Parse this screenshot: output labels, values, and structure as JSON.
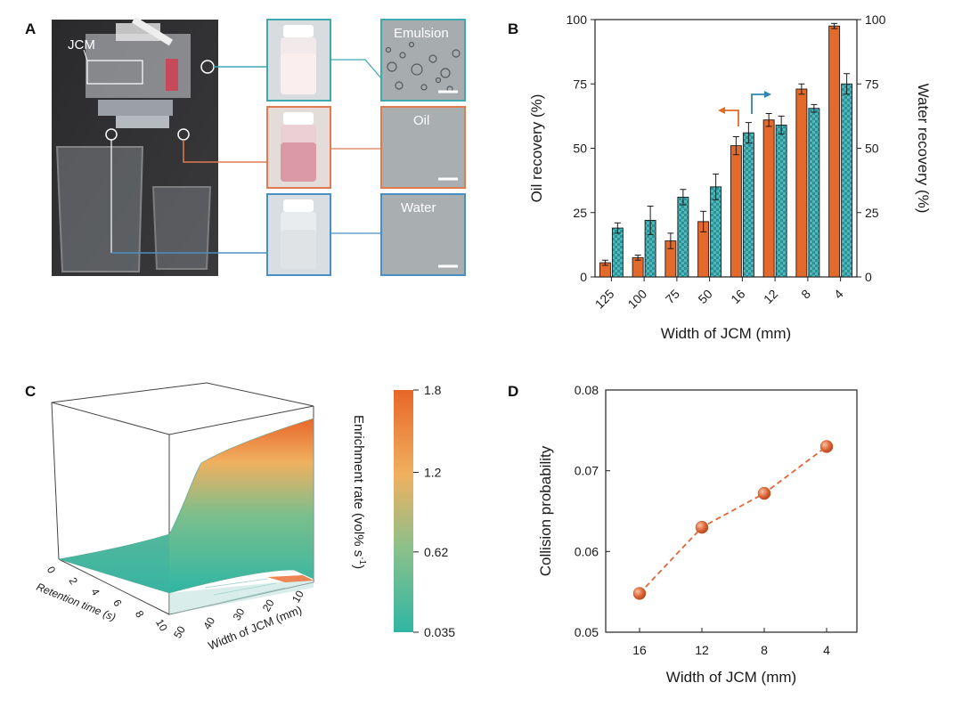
{
  "panels": {
    "a": "A",
    "b": "B",
    "c": "C",
    "d": "D"
  },
  "photo": {
    "jcm_label": "JCM",
    "thumb_labels": [
      "Emulsion",
      "Oil",
      "Water"
    ],
    "colors": {
      "emulsion_line": "#3fa9b0",
      "oil_line": "#e07b4f",
      "water_line": "#4a8fc4"
    }
  },
  "chart_data": [
    {
      "type": "bar",
      "id": "B",
      "categories": [
        "125",
        "100",
        "75",
        "50",
        "16",
        "12",
        "8",
        "4"
      ],
      "xlabel": "Width of JCM (mm)",
      "ylabel_left": "Oil recovery (%)",
      "ylabel_right": "Water recovery (%)",
      "ylim": [
        0,
        100
      ],
      "yticks": [
        0,
        25,
        50,
        75,
        100
      ],
      "series": [
        {
          "name": "Oil recovery",
          "axis": "left",
          "color": "#e36a2a",
          "values": [
            5.5,
            7.5,
            14,
            21.5,
            51,
            61,
            73,
            97.5
          ],
          "errors": [
            1,
            1,
            3,
            4,
            3.5,
            2.5,
            2,
            1
          ]
        },
        {
          "name": "Water recovery",
          "axis": "right",
          "color": "#3aa6a8",
          "values": [
            19,
            22,
            31,
            35,
            56,
            59,
            65.5,
            75
          ],
          "errors": [
            2,
            5.5,
            3,
            5,
            4,
            3.5,
            1.5,
            4
          ]
        }
      ]
    },
    {
      "type": "surface",
      "id": "C",
      "xlabel": "Retention time (s)",
      "ylabel": "Width of JCM (mm)",
      "xticks": [
        "0",
        "2",
        "4",
        "6",
        "8",
        "10"
      ],
      "yticks": [
        "10",
        "20",
        "30",
        "40",
        "50"
      ],
      "colorbar_label": "Enrichment rate (vol% s",
      "colorbar_sup": "-1",
      "colorbar_close": ")",
      "colorbar_ticks": [
        "1.8",
        "1.2",
        "0.62",
        "0.035"
      ],
      "colorbar_values": [
        1.8,
        1.2,
        0.62,
        0.035
      ],
      "colors": [
        "#2fb6a4",
        "#8cc08a",
        "#f0b060",
        "#e8662a"
      ]
    },
    {
      "type": "scatter",
      "id": "D",
      "categories": [
        "16",
        "12",
        "8",
        "4"
      ],
      "values": [
        0.0548,
        0.063,
        0.0672,
        0.073
      ],
      "xlabel": "Width of JCM (mm)",
      "ylabel": "Collision probability",
      "ylim": [
        0.05,
        0.08
      ],
      "yticks": [
        "0.05",
        "0.06",
        "0.07",
        "0.08"
      ],
      "ytick_values": [
        0.05,
        0.06,
        0.07,
        0.08
      ],
      "color": "#e0693a"
    }
  ]
}
